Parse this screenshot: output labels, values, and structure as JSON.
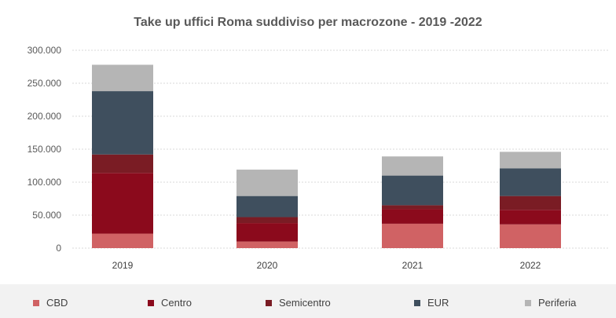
{
  "chart_data": {
    "type": "bar",
    "stacked": true,
    "title": "Take up uffici Roma suddiviso per macrozone - 2019 -2022",
    "categories": [
      "2019",
      "2020",
      "2021",
      "2022"
    ],
    "yticks": [
      "0",
      "50.000",
      "100.000",
      "150.000",
      "200.000",
      "250.000",
      "300.000"
    ],
    "ylim": [
      0,
      300000
    ],
    "grid": true,
    "legend_position": "bottom",
    "series": [
      {
        "name": "CBD",
        "color": "#d06264",
        "values": [
          22000,
          10000,
          37000,
          36000
        ]
      },
      {
        "name": "Centro",
        "color": "#8b0a1c",
        "values": [
          92000,
          28000,
          22000,
          22000
        ]
      },
      {
        "name": "Semicentro",
        "color": "#7a1c24",
        "values": [
          28000,
          9000,
          6000,
          21000
        ]
      },
      {
        "name": "EUR",
        "color": "#3f4f5e",
        "values": [
          96000,
          32000,
          45000,
          42000
        ]
      },
      {
        "name": "Periferia",
        "color": "#b5b5b5",
        "values": [
          40000,
          40000,
          29000,
          25000
        ]
      }
    ]
  }
}
